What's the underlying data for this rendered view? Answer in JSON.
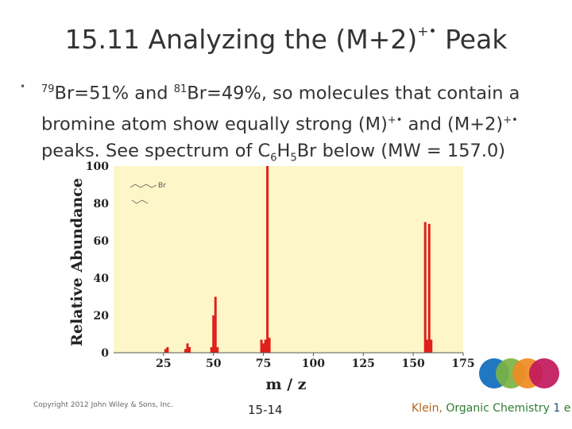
{
  "slide": {
    "title_main": "15.11 Analyzing the (M+2)",
    "title_sup": "+•",
    "title_end": " Peak",
    "bullet": {
      "iso79_sup": "79",
      "iso79_text": "Br=51% and ",
      "iso81_sup": "81",
      "iso81_text": "Br=49%, so molecules that contain a",
      "line2_a": "bromine atom show equally strong (M)",
      "line2_sup1": "+•",
      "line2_b": " and (M+2)",
      "line2_sup2": "+•",
      "line3_a": "peaks. See spectrum of C",
      "line3_sub1": "6",
      "line3_b": "H",
      "line3_sub2": "5",
      "line3_c": "Br below (MW = 157.0)"
    },
    "footer": {
      "copyright": "Copyright 2012 John Wiley & Sons, Inc.",
      "page": "15-14",
      "author": "Klein, ",
      "book": "Organic Chemistry ",
      "edition_num": "1",
      "edition_e": " e"
    }
  },
  "chart_data": {
    "type": "bar",
    "ylabel": "Relative Abundance",
    "xlabel": "m / z",
    "xlim": [
      0,
      175
    ],
    "ylim": [
      0,
      100
    ],
    "xticks": [
      "25",
      "50",
      "75",
      "100",
      "125",
      "150",
      "175"
    ],
    "yticks": [
      "0",
      "20",
      "40",
      "60",
      "80",
      "100"
    ],
    "structure_label": "Br",
    "background": "#fdf6c8",
    "bar_color": "#e0201b",
    "peaks": [
      {
        "x": 26,
        "y": 2
      },
      {
        "x": 27,
        "y": 3
      },
      {
        "x": 36,
        "y": 2
      },
      {
        "x": 37,
        "y": 5
      },
      {
        "x": 38,
        "y": 3
      },
      {
        "x": 49,
        "y": 3
      },
      {
        "x": 50,
        "y": 20
      },
      {
        "x": 51,
        "y": 30
      },
      {
        "x": 52,
        "y": 3
      },
      {
        "x": 74,
        "y": 7
      },
      {
        "x": 75,
        "y": 5
      },
      {
        "x": 76,
        "y": 7
      },
      {
        "x": 77,
        "y": 100
      },
      {
        "x": 78,
        "y": 8
      },
      {
        "x": 156,
        "y": 70
      },
      {
        "x": 157,
        "y": 7
      },
      {
        "x": 158,
        "y": 69
      },
      {
        "x": 159,
        "y": 7
      }
    ]
  }
}
